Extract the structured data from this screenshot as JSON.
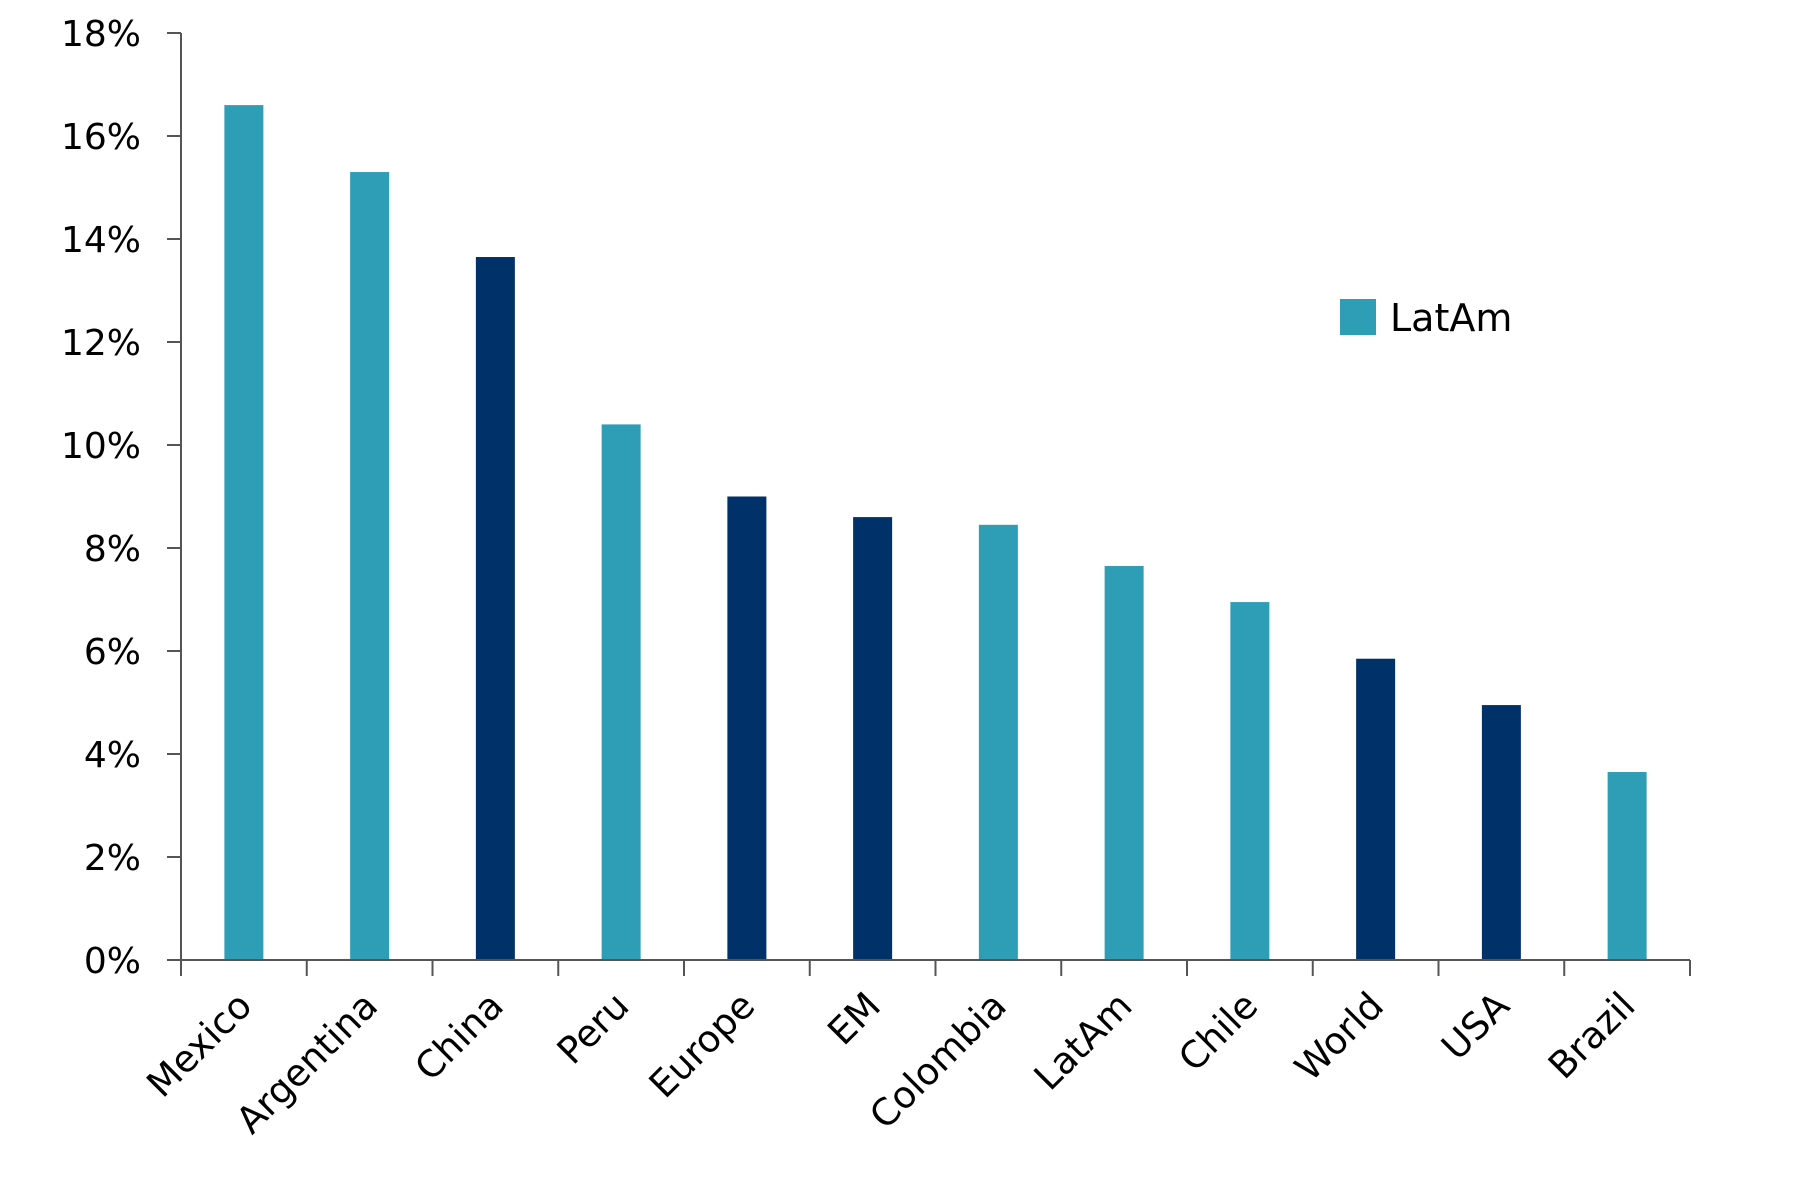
{
  "chart_data": {
    "type": "bar",
    "categories": [
      "Mexico",
      "Argentina",
      "China",
      "Peru",
      "Europe",
      "EM",
      "Colombia",
      "LatAm",
      "Chile",
      "World",
      "USA",
      "Brazil"
    ],
    "values": [
      16.6,
      15.3,
      13.65,
      10.4,
      9.0,
      8.6,
      8.45,
      7.65,
      6.95,
      5.85,
      4.95,
      3.65
    ],
    "groups": [
      "LatAm",
      "LatAm",
      "Other",
      "LatAm",
      "Other",
      "Other",
      "LatAm",
      "LatAm",
      "LatAm",
      "Other",
      "Other",
      "LatAm"
    ],
    "colors": {
      "LatAm": "#2E9DB6",
      "Other": "#003169"
    },
    "ylim": [
      0,
      18
    ],
    "yticks": [
      0,
      2,
      4,
      6,
      8,
      10,
      12,
      14,
      16,
      18
    ],
    "ytick_labels": [
      "0%",
      "2%",
      "4%",
      "6%",
      "8%",
      "10%",
      "12%",
      "14%",
      "16%",
      "18%"
    ],
    "legend": {
      "entries": [
        {
          "label": "LatAm",
          "group": "LatAm"
        }
      ],
      "position": "right"
    },
    "grid": false
  }
}
